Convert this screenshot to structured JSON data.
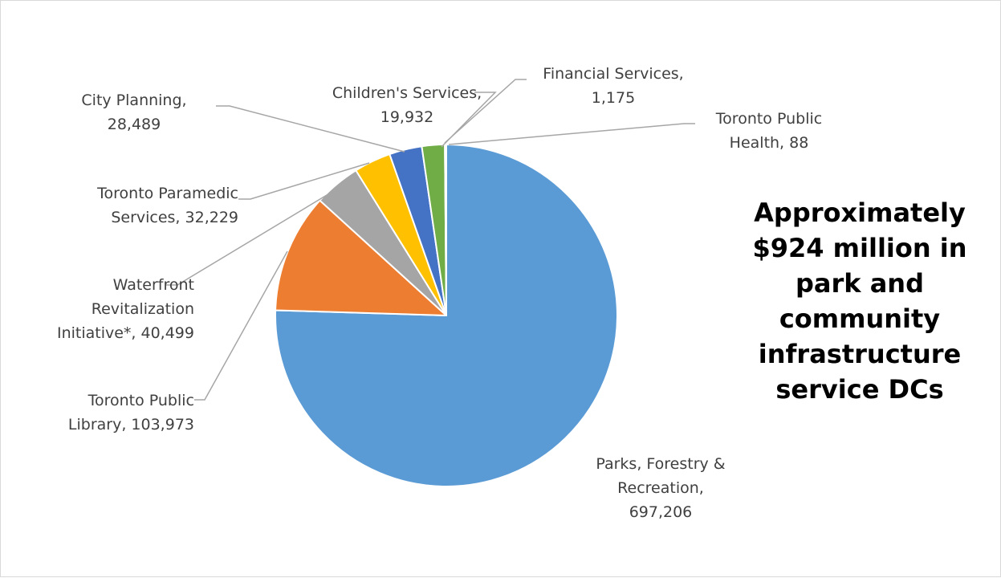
{
  "chart_data": {
    "type": "pie",
    "title": "",
    "start_angle_deg": 0,
    "direction": "clockwise",
    "legend": "none",
    "slices": [
      {
        "label": "Parks, Forestry & Recreation",
        "value": 697206,
        "color": "#5B9BD5",
        "label_lines": [
          "Parks, Forestry &",
          "Recreation,",
          "697,206"
        ]
      },
      {
        "label": "Toronto Public Library",
        "value": 103973,
        "color": "#ED7D31",
        "label_lines": [
          "Toronto Public",
          "Library,  103,973"
        ]
      },
      {
        "label": "Waterfront Revitalization Initiative*",
        "value": 40499,
        "color": "#A5A5A5",
        "label_lines": [
          "Waterfront",
          "Revitalization",
          "Initiative*,  40,499"
        ]
      },
      {
        "label": "Toronto Paramedic Services",
        "value": 32229,
        "color": "#FFC000",
        "label_lines": [
          "Toronto Paramedic",
          "Services,  32,229"
        ]
      },
      {
        "label": "City Planning",
        "value": 28489,
        "color": "#4472C4",
        "label_lines": [
          "City Planning,",
          "28,489"
        ]
      },
      {
        "label": "Children's Services",
        "value": 19932,
        "color": "#70AD47",
        "label_lines": [
          "Children's Services,",
          "19,932"
        ]
      },
      {
        "label": "Financial Services",
        "value": 1175,
        "color": "#264478",
        "label_lines": [
          "Financial Services,",
          "1,175"
        ]
      },
      {
        "label": "Toronto Public Health",
        "value": 88,
        "color": "#9E480E",
        "label_lines": [
          "Toronto Public",
          "Health,  88"
        ]
      }
    ]
  },
  "side_note": "Approximately\n$924 million in\npark and\ncommunity\ninfrastructure\nservice DCs",
  "colors": {
    "leader_line": "#A6A6A6",
    "label_text": "#404040",
    "slice_border": "#FFFFFF"
  }
}
